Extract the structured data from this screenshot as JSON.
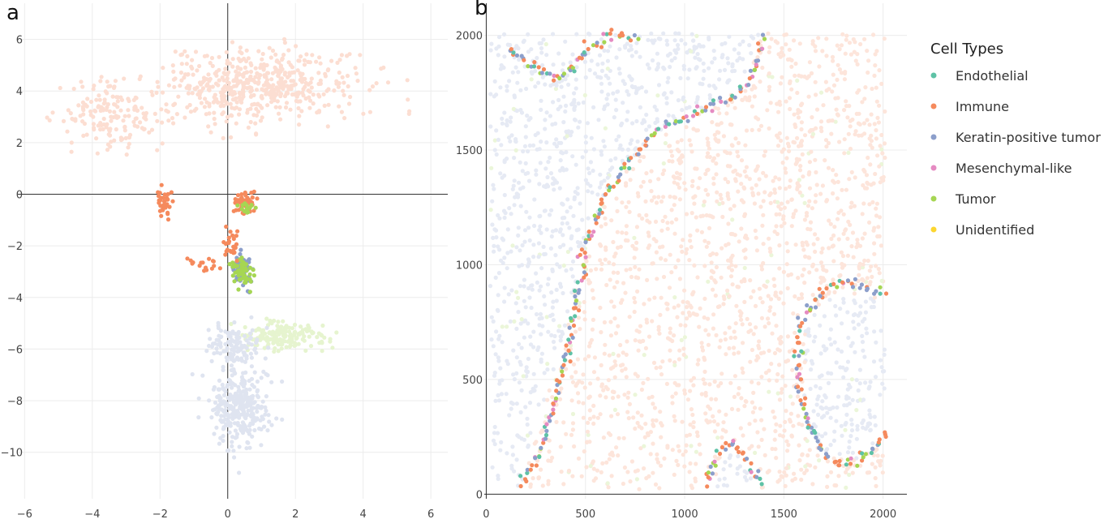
{
  "legend": {
    "title": "Cell Types",
    "entries": [
      {
        "name": "Endothelial",
        "color": "#5ec2a6"
      },
      {
        "name": "Immune",
        "color": "#f58a5d"
      },
      {
        "name": "Keratin-positive tumor",
        "color": "#8c9fcb"
      },
      {
        "name": "Mesenchymal-like",
        "color": "#e58bc2"
      },
      {
        "name": "Tumor",
        "color": "#a6d653"
      },
      {
        "name": "Unidentified",
        "color": "#fcd630"
      }
    ]
  },
  "chart_data": [
    {
      "type": "scatter",
      "panel_label": "a",
      "title": "",
      "xlabel": "",
      "ylabel": "",
      "xlim": [
        -6.2,
        6.5
      ],
      "ylim": [
        -11.8,
        7.4
      ],
      "x_ticks": [
        -6,
        -4,
        -2,
        0,
        2,
        4,
        6
      ],
      "y_ticks": [
        6,
        4,
        2,
        0,
        -2,
        -4,
        -6,
        -8,
        -10
      ],
      "zero_lines": true,
      "grid": true,
      "clusters": [
        {
          "category": "Immune",
          "center": [
            0.9,
            4.2
          ],
          "spread": [
            2.6,
            1.3
          ],
          "n": 520,
          "faded": true
        },
        {
          "category": "Immune",
          "center": [
            -3.5,
            3.0
          ],
          "spread": [
            1.4,
            1.2
          ],
          "n": 160,
          "faded": true
        },
        {
          "category": "Keratin-positive tumor",
          "center": [
            0.4,
            -8.3
          ],
          "spread": [
            0.8,
            1.4
          ],
          "n": 300,
          "faded": true
        },
        {
          "category": "Tumor",
          "center": [
            1.6,
            -5.5
          ],
          "spread": [
            1.2,
            0.5
          ],
          "n": 170,
          "faded": true
        },
        {
          "category": "Keratin-positive tumor",
          "center": [
            0.2,
            -5.9
          ],
          "spread": [
            0.8,
            0.8
          ],
          "n": 120,
          "faded": true
        },
        {
          "category": "Immune",
          "center": [
            0.5,
            -0.3
          ],
          "spread": [
            0.25,
            0.3
          ],
          "n": 60,
          "faded": false
        },
        {
          "category": "Immune",
          "center": [
            -1.9,
            -0.4
          ],
          "spread": [
            0.2,
            0.5
          ],
          "n": 34,
          "faded": false
        },
        {
          "category": "Keratin-positive tumor",
          "center": [
            0.4,
            -2.9
          ],
          "spread": [
            0.3,
            0.6
          ],
          "n": 60,
          "faded": false
        },
        {
          "category": "Tumor",
          "center": [
            0.45,
            -3.0
          ],
          "spread": [
            0.3,
            0.45
          ],
          "n": 60,
          "faded": false
        },
        {
          "category": "Immune",
          "center": [
            0.1,
            -1.9
          ],
          "spread": [
            0.3,
            0.45
          ],
          "n": 26,
          "faded": false
        },
        {
          "category": "Tumor",
          "center": [
            0.55,
            -0.5
          ],
          "spread": [
            0.2,
            0.2
          ],
          "n": 14,
          "faded": false
        },
        {
          "category": "Immune",
          "center": [
            -0.8,
            -2.7
          ],
          "spread": [
            0.5,
            0.3
          ],
          "n": 16,
          "faded": false
        }
      ]
    },
    {
      "type": "scatter",
      "panel_label": "b",
      "title": "",
      "xlabel": "",
      "ylabel": "",
      "xlim": [
        -10,
        2120
      ],
      "ylim": [
        -20,
        2140
      ],
      "x_ticks": [
        0,
        500,
        1000,
        1500,
        2000
      ],
      "y_ticks": [
        2000,
        1500,
        1000,
        500,
        0
      ],
      "zero_lines": true,
      "grid": true,
      "background_extent": [
        20,
        2010
      ],
      "boundary_curves": [
        [
          [
            120,
            1950
          ],
          [
            230,
            1860
          ],
          [
            330,
            1810
          ],
          [
            450,
            1870
          ],
          [
            520,
            1960
          ],
          [
            650,
            2005
          ],
          [
            770,
            1980
          ]
        ],
        [
          [
            170,
            40
          ],
          [
            270,
            180
          ],
          [
            320,
            330
          ],
          [
            380,
            500
          ],
          [
            420,
            700
          ],
          [
            470,
            900
          ],
          [
            510,
            1100
          ],
          [
            600,
            1300
          ],
          [
            720,
            1450
          ],
          [
            850,
            1580
          ],
          [
            980,
            1640
          ],
          [
            1100,
            1680
          ],
          [
            1260,
            1740
          ],
          [
            1360,
            1850
          ],
          [
            1390,
            2000
          ]
        ],
        [
          [
            1720,
            900
          ],
          [
            1650,
            830
          ],
          [
            1590,
            760
          ],
          [
            1560,
            600
          ],
          [
            1580,
            450
          ],
          [
            1620,
            320
          ],
          [
            1700,
            180
          ],
          [
            1800,
            120
          ],
          [
            1900,
            160
          ],
          [
            1980,
            230
          ],
          [
            2020,
            280
          ]
        ],
        [
          [
            1110,
            40
          ],
          [
            1160,
            170
          ],
          [
            1240,
            230
          ],
          [
            1310,
            160
          ],
          [
            1390,
            40
          ]
        ],
        [
          [
            1730,
            900
          ],
          [
            1800,
            930
          ],
          [
            1900,
            910
          ],
          [
            2020,
            870
          ]
        ]
      ],
      "regions": [
        {
          "category": "Keratin-positive tumor",
          "polygon": [
            [
              20,
              20
            ],
            [
              170,
              20
            ],
            [
              300,
              400
            ],
            [
              420,
              800
            ],
            [
              520,
              1150
            ],
            [
              700,
              1420
            ],
            [
              900,
              1600
            ],
            [
              1200,
              1700
            ],
            [
              1360,
              1900
            ],
            [
              1390,
              2010
            ],
            [
              20,
              2010
            ]
          ]
        },
        {
          "category": "Keratin-positive tumor",
          "polygon": [
            [
              1600,
              300
            ],
            [
              1700,
              180
            ],
            [
              1850,
              150
            ],
            [
              2010,
              220
            ],
            [
              2010,
              850
            ],
            [
              1750,
              880
            ],
            [
              1610,
              760
            ]
          ]
        },
        {
          "category": "Keratin-positive tumor",
          "polygon": [
            [
              1150,
              20
            ],
            [
              1370,
              20
            ],
            [
              1300,
              170
            ],
            [
              1220,
              200
            ]
          ]
        }
      ]
    }
  ]
}
